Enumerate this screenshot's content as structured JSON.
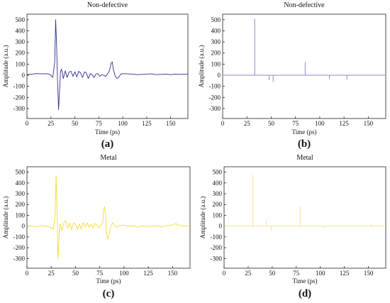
{
  "chart_data": [
    {
      "type": "line",
      "panel": "(a)",
      "title": "Non-defective",
      "xlabel": "Time (ps)",
      "ylabel": "Amplitude (a.u.)",
      "xlim": [
        0,
        168
      ],
      "ylim": [
        -390,
        550
      ],
      "xticks": [
        "0",
        "25",
        "50",
        "75",
        "100",
        "125",
        "150"
      ],
      "yticks": [
        "-300",
        "-200",
        "-100",
        "0",
        "100",
        "200",
        "300",
        "400",
        "500"
      ],
      "color": "#2f2f8f",
      "series": [
        {
          "x": [
            0,
            5,
            10,
            15,
            20,
            24,
            27,
            29,
            30,
            31,
            32,
            33,
            34,
            35,
            36,
            37,
            38,
            40,
            42,
            44,
            46,
            48,
            50,
            52,
            54,
            56,
            58,
            60,
            62,
            64,
            66,
            68,
            70,
            72,
            74,
            76,
            78,
            80,
            82,
            84,
            86,
            88,
            89,
            90,
            92,
            94,
            96,
            98,
            100,
            105,
            110,
            115,
            120,
            125,
            130,
            135,
            140,
            145,
            150,
            155,
            160,
            168
          ],
          "y": [
            5,
            10,
            15,
            12,
            14,
            8,
            -20,
            120,
            500,
            250,
            -60,
            -310,
            -150,
            30,
            55,
            20,
            -30,
            40,
            -20,
            30,
            35,
            -10,
            30,
            -15,
            35,
            20,
            -20,
            30,
            20,
            -30,
            15,
            5,
            -20,
            10,
            15,
            -10,
            5,
            0,
            -10,
            10,
            40,
            110,
            120,
            60,
            -5,
            -30,
            -15,
            10,
            15,
            12,
            10,
            5,
            8,
            10,
            12,
            5,
            8,
            10,
            5,
            10,
            8,
            10
          ]
        }
      ]
    },
    {
      "type": "line",
      "panel": "(b)",
      "title": "Non-defective",
      "xlabel": "Time (ps)",
      "ylabel": "Amplitude (a.u.)",
      "xlim": [
        0,
        168
      ],
      "ylim": [
        -390,
        550
      ],
      "xticks": [
        "0",
        "25",
        "50",
        "75",
        "100",
        "125",
        "150"
      ],
      "yticks": [
        "-300",
        "-200",
        "-100",
        "0",
        "100",
        "200",
        "300",
        "400",
        "500"
      ],
      "color": "#8a8ac8",
      "series": [
        {
          "x": [
            33,
            48,
            52,
            85,
            110,
            128
          ],
          "y": [
            510,
            -45,
            -60,
            120,
            -35,
            -40
          ]
        }
      ]
    },
    {
      "type": "line",
      "panel": "(c)",
      "title": "Metal",
      "xlabel": "Time (ps)",
      "ylabel": "Amplitude (a.u.)",
      "xlim": [
        0,
        168
      ],
      "ylim": [
        -390,
        550
      ],
      "xticks": [
        "0",
        "25",
        "50",
        "75",
        "100",
        "125",
        "150"
      ],
      "yticks": [
        "-300",
        "-200",
        "-100",
        "0",
        "100",
        "200",
        "300",
        "400",
        "500"
      ],
      "color": "#eedd33",
      "series": [
        {
          "x": [
            0,
            5,
            10,
            15,
            20,
            24,
            27,
            29,
            30,
            31,
            32,
            33,
            34,
            36,
            38,
            40,
            42,
            44,
            46,
            48,
            50,
            52,
            54,
            56,
            58,
            60,
            62,
            64,
            66,
            68,
            70,
            72,
            74,
            76,
            78,
            79,
            80,
            81,
            82,
            83,
            84,
            86,
            88,
            90,
            92,
            95,
            100,
            105,
            110,
            115,
            120,
            125,
            130,
            135,
            140,
            145,
            150,
            153,
            156,
            160,
            168
          ],
          "y": [
            0,
            2,
            -5,
            5,
            0,
            -10,
            -30,
            100,
            470,
            150,
            -310,
            -100,
            20,
            -40,
            30,
            50,
            -20,
            30,
            -30,
            30,
            20,
            -30,
            20,
            -30,
            35,
            -10,
            30,
            -10,
            20,
            -15,
            25,
            10,
            -15,
            10,
            30,
            150,
            180,
            100,
            -60,
            -120,
            -100,
            -20,
            30,
            10,
            -10,
            5,
            10,
            -5,
            5,
            -10,
            5,
            -5,
            5,
            0,
            -5,
            5,
            10,
            25,
            10,
            0,
            5
          ]
        }
      ]
    },
    {
      "type": "line",
      "panel": "(d)",
      "title": "Metal",
      "xlabel": "Time (ps)",
      "ylabel": "Amplitude (a.u.)",
      "xlim": [
        0,
        168
      ],
      "ylim": [
        -390,
        550
      ],
      "xticks": [
        "0",
        "25",
        "50",
        "75",
        "100",
        "125",
        "150"
      ],
      "yticks": [
        "-300",
        "-200",
        "-100",
        "0",
        "100",
        "200",
        "300",
        "400",
        "500"
      ],
      "color": "#f2e48a",
      "series": [
        {
          "x": [
            30,
            44,
            49,
            79,
            104,
            153
          ],
          "y": [
            475,
            50,
            -40,
            180,
            -20,
            25
          ]
        }
      ]
    }
  ]
}
